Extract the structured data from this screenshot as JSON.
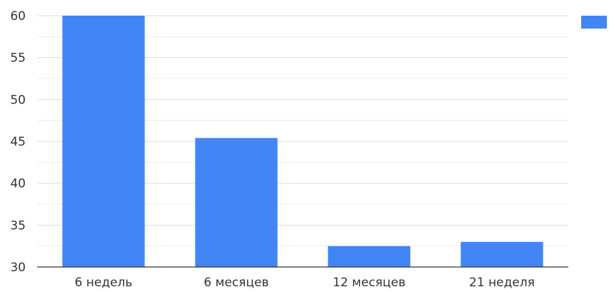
{
  "chart_data": {
    "type": "bar",
    "title": "",
    "xlabel": "",
    "ylabel": "",
    "categories": [
      "6 недель",
      "6 месяцев",
      "12 месяцев",
      "21 неделя"
    ],
    "series": [
      {
        "values": [
          60,
          45.4,
          32.5,
          33
        ],
        "color": "#4285f4"
      }
    ],
    "ylim": [
      30,
      60
    ],
    "yticks": [
      30,
      35,
      40,
      45,
      50,
      55,
      60
    ],
    "minor_grid_step": 2.5,
    "grid": true,
    "legend": {
      "position": "top-right",
      "entries": [
        {
          "label": "",
          "color": "#4285f4"
        }
      ]
    },
    "colors": {
      "bar": "#4285f4",
      "gridline": "#dcdcdc",
      "minor_gridline": "#ededed",
      "baseline": "#333333",
      "tick_label": "#333333"
    }
  }
}
